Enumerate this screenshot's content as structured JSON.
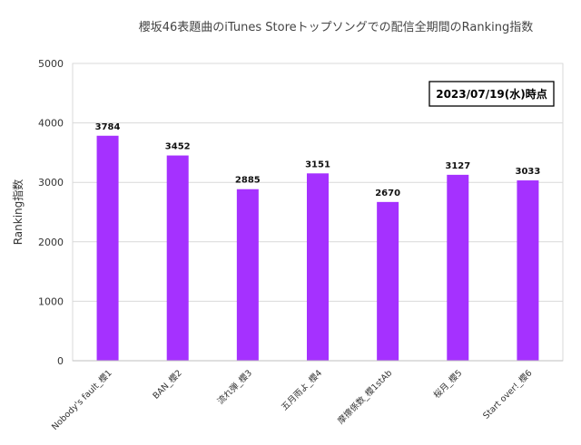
{
  "chart_data": {
    "type": "bar",
    "title": "櫻坂46表題曲のiTunes Storeトップソングでの配信全期間のRanking指数",
    "ylabel": "Ranking指数",
    "xlabel": "",
    "categories": [
      "Nobody's fault_櫻1",
      "BAN_櫻2",
      "流れ弾_櫻3",
      "五月雨よ_櫻4",
      "摩擦係数_櫻1stAb",
      "桜月_櫻5",
      "Start over!_櫻6"
    ],
    "values": [
      3784,
      3452,
      2885,
      3151,
      2670,
      3127,
      3033
    ],
    "ylim": [
      0,
      5000
    ],
    "yticks": [
      "0",
      "1000",
      "2000",
      "3000",
      "4000",
      "5000"
    ],
    "annotation": "2023/07/19(水)時点",
    "grid": true,
    "bar_color": "#a531ff"
  }
}
